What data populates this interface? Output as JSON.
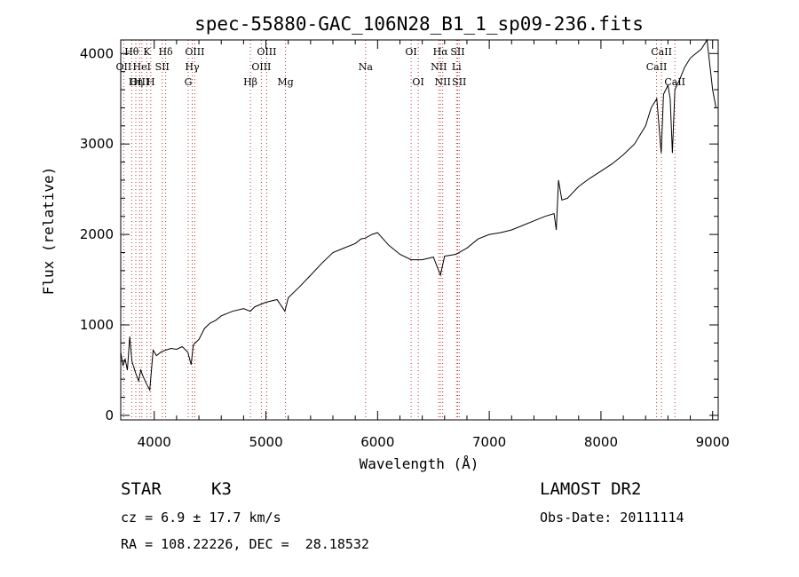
{
  "chart_data": {
    "type": "line",
    "title": "spec-55880-GAC_106N28_B1_1_sp09-236.fits",
    "xlabel": "Wavelength (Å)",
    "ylabel": "Flux (relative)",
    "xlim": [
      3700,
      9050
    ],
    "ylim": [
      -50,
      4150
    ],
    "xticks": [
      4000,
      5000,
      6000,
      7000,
      8000,
      9000
    ],
    "yticks": [
      0,
      1000,
      2000,
      3000,
      4000
    ],
    "grid": false,
    "series": [
      {
        "x": [
          3700,
          3720,
          3740,
          3760,
          3780,
          3800,
          3830,
          3860,
          3880,
          3900,
          3930,
          3960,
          3990,
          4020,
          4060,
          4100,
          4150,
          4200,
          4250,
          4300,
          4330,
          4350,
          4400,
          4450,
          4500,
          4550,
          4600,
          4700,
          4800,
          4860,
          4900,
          5000,
          5100,
          5170,
          5200,
          5300,
          5400,
          5500,
          5600,
          5700,
          5800,
          5850,
          5890,
          5950,
          6000,
          6050,
          6100,
          6200,
          6300,
          6400,
          6500,
          6563,
          6600,
          6700,
          6800,
          6900,
          7000,
          7100,
          7200,
          7300,
          7400,
          7500,
          7580,
          7600,
          7620,
          7650,
          7700,
          7800,
          7900,
          8000,
          8100,
          8200,
          8300,
          8400,
          8450,
          8500,
          8540,
          8560,
          8600,
          8620,
          8640,
          8662,
          8700,
          8750,
          8800,
          8850,
          8900,
          8950,
          9000,
          9030
        ],
        "y": [
          700,
          550,
          620,
          500,
          870,
          600,
          480,
          380,
          500,
          430,
          350,
          280,
          720,
          660,
          700,
          720,
          740,
          730,
          760,
          700,
          560,
          780,
          840,
          960,
          1020,
          1050,
          1100,
          1150,
          1180,
          1150,
          1200,
          1250,
          1280,
          1150,
          1300,
          1420,
          1550,
          1680,
          1800,
          1850,
          1900,
          1950,
          1960,
          2000,
          2020,
          1950,
          1880,
          1780,
          1720,
          1720,
          1750,
          1550,
          1760,
          1780,
          1850,
          1950,
          2000,
          2020,
          2050,
          2100,
          2150,
          2200,
          2230,
          2050,
          2600,
          2380,
          2400,
          2530,
          2620,
          2700,
          2780,
          2880,
          3000,
          3200,
          3400,
          3500,
          2900,
          3550,
          3650,
          3500,
          2900,
          3600,
          3700,
          3850,
          3950,
          4000,
          4050,
          4150,
          3600,
          3400
        ]
      }
    ],
    "lines": [
      {
        "name": "Hθ",
        "x": 3798,
        "row": 0
      },
      {
        "name": "OII",
        "x": 3727,
        "row": 1
      },
      {
        "name": "OIII",
        "x": 3869,
        "row": 2
      },
      {
        "name": "Hη",
        "x": 3835,
        "row": 2
      },
      {
        "name": "K",
        "x": 3934,
        "row": 0
      },
      {
        "name": "HeI",
        "x": 3889,
        "row": 1
      },
      {
        "name": "H",
        "x": 3969,
        "row": 2
      },
      {
        "name": "SII",
        "x": 4072,
        "row": 1
      },
      {
        "name": "Hδ",
        "x": 4102,
        "row": 0
      },
      {
        "name": "OIII",
        "x": 4363,
        "row": 0
      },
      {
        "name": "Hγ",
        "x": 4340,
        "row": 1
      },
      {
        "name": "G",
        "x": 4304,
        "row": 2
      },
      {
        "name": "Hβ",
        "x": 4861,
        "row": 2
      },
      {
        "name": "OIII",
        "x": 5007,
        "row": 0
      },
      {
        "name": "OIII",
        "x": 4959,
        "row": 1
      },
      {
        "name": "Mg",
        "x": 5175,
        "row": 2
      },
      {
        "name": "Na",
        "x": 5893,
        "row": 1
      },
      {
        "name": "OI",
        "x": 6300,
        "row": 0
      },
      {
        "name": "OI",
        "x": 6364,
        "row": 2
      },
      {
        "name": "Hα",
        "x": 6563,
        "row": 0
      },
      {
        "name": "NII",
        "x": 6548,
        "row": 1
      },
      {
        "name": "NII",
        "x": 6583,
        "row": 2
      },
      {
        "name": "SII",
        "x": 6717,
        "row": 0
      },
      {
        "name": "Li",
        "x": 6707,
        "row": 1
      },
      {
        "name": "SII",
        "x": 6731,
        "row": 2
      },
      {
        "name": "CaII",
        "x": 8542,
        "row": 0
      },
      {
        "name": "CaII",
        "x": 8498,
        "row": 1
      },
      {
        "name": "CaII",
        "x": 8662,
        "row": 2
      }
    ]
  },
  "footer": {
    "class_label": "STAR",
    "subclass": "K3",
    "cz": "cz = 6.9 ± 17.7 km/s",
    "coords": "RA = 108.22226, DEC =  28.18532",
    "survey": "LAMOST DR2",
    "obs_date": "Obs-Date: 20111114"
  }
}
